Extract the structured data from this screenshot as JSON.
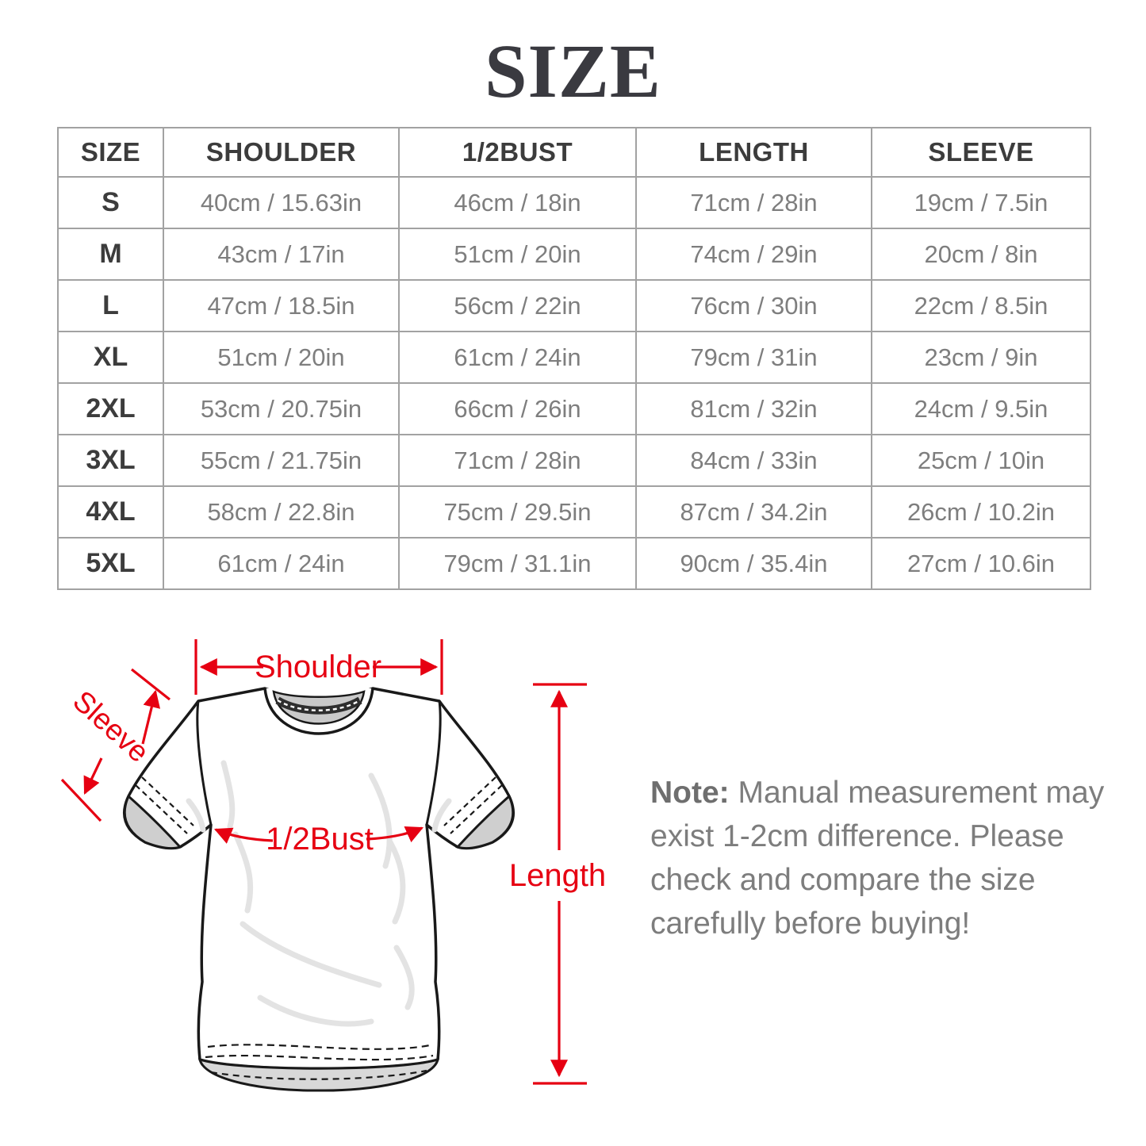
{
  "title": "SIZE",
  "table": {
    "headers": [
      "SIZE",
      "SHOULDER",
      "1/2BUST",
      "LENGTH",
      "SLEEVE"
    ],
    "rows": [
      [
        "S",
        "40cm / 15.63in",
        "46cm / 18in",
        "71cm / 28in",
        "19cm / 7.5in"
      ],
      [
        "M",
        "43cm / 17in",
        "51cm / 20in",
        "74cm / 29in",
        "20cm / 8in"
      ],
      [
        "L",
        "47cm / 18.5in",
        "56cm / 22in",
        "76cm / 30in",
        "22cm / 8.5in"
      ],
      [
        "XL",
        "51cm / 20in",
        "61cm / 24in",
        "79cm / 31in",
        "23cm / 9in"
      ],
      [
        "2XL",
        "53cm / 20.75in",
        "66cm / 26in",
        "81cm / 32in",
        "24cm / 9.5in"
      ],
      [
        "3XL",
        "55cm / 21.75in",
        "71cm / 28in",
        "84cm / 33in",
        "25cm / 10in"
      ],
      [
        "4XL",
        "58cm / 22.8in",
        "75cm / 29.5in",
        "87cm / 34.2in",
        "26cm / 10.2in"
      ],
      [
        "5XL",
        "61cm / 24in",
        "79cm / 31.1in",
        "90cm / 35.4in",
        "27cm / 10.6in"
      ]
    ]
  },
  "diagram": {
    "labels": {
      "shoulder": "Shoulder",
      "sleeve": "Sleeve",
      "bust": "1/2Bust",
      "length": "Length"
    }
  },
  "note": {
    "prefix": "Note:",
    "line1_rest": " Manual measurement may",
    "line2": "exist 1-2cm difference. Please",
    "line3": "check and compare the size",
    "line4": "carefully before buying!"
  },
  "colors": {
    "accent_red": "#e60012",
    "table_border": "#a2a2a2",
    "header_text": "#3c3c3c",
    "value_text": "#7e7e7e",
    "note_text": "#7d7d7d",
    "title_text": "#3a3a40",
    "collar_gray": "#c9c9c9"
  }
}
